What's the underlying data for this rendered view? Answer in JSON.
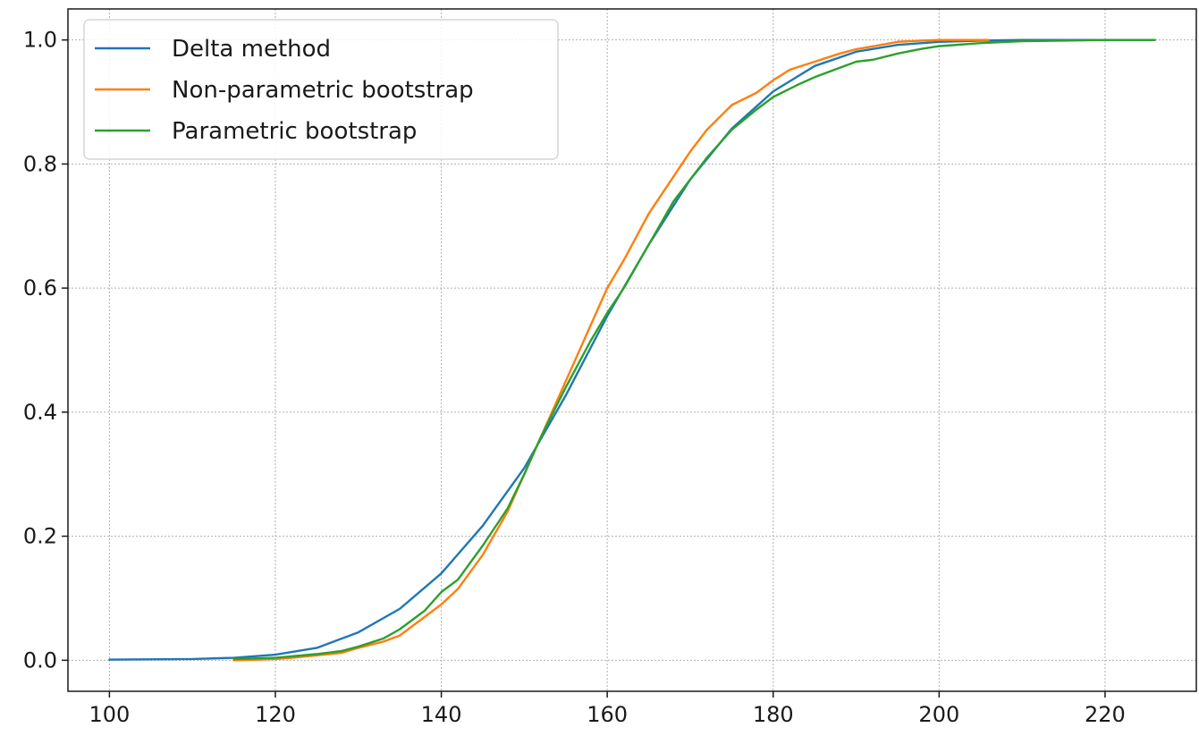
{
  "chart_data": {
    "type": "line",
    "title": "",
    "xlabel": "",
    "ylabel": "",
    "xlim": [
      95,
      231
    ],
    "ylim": [
      -0.05,
      1.05
    ],
    "xticks": [
      100,
      120,
      140,
      160,
      180,
      200,
      220
    ],
    "yticks": [
      0.0,
      0.2,
      0.4,
      0.6,
      0.8,
      1.0
    ],
    "xtick_labels": [
      "100",
      "120",
      "140",
      "160",
      "180",
      "200",
      "220"
    ],
    "ytick_labels": [
      "0.0",
      "0.2",
      "0.4",
      "0.6",
      "0.8",
      "1.0"
    ],
    "grid": true,
    "legend_position": "top-left",
    "series": [
      {
        "name": "Delta method",
        "color": "#1f77b4",
        "x": [
          100,
          110,
          115,
          120,
          125,
          130,
          135,
          140,
          145,
          150,
          155,
          160,
          165,
          170,
          175,
          180,
          185,
          190,
          195,
          200,
          205,
          210,
          215,
          220,
          226
        ],
        "y": [
          0.001,
          0.002,
          0.004,
          0.009,
          0.02,
          0.045,
          0.083,
          0.14,
          0.217,
          0.31,
          0.427,
          0.555,
          0.67,
          0.775,
          0.857,
          0.917,
          0.958,
          0.981,
          0.992,
          0.997,
          0.999,
          1.0,
          1.0,
          1.0,
          1.0
        ]
      },
      {
        "name": "Non-parametric bootstrap",
        "color": "#ff7f0e",
        "x": [
          115,
          118,
          120,
          122,
          125,
          128,
          130,
          133,
          135,
          138,
          140,
          142,
          145,
          148,
          150,
          152,
          155,
          158,
          160,
          162,
          165,
          168,
          170,
          172,
          175,
          178,
          180,
          182,
          185,
          188,
          190,
          193,
          195,
          198,
          200,
          203,
          206
        ],
        "y": [
          0.0,
          0.001,
          0.002,
          0.004,
          0.008,
          0.012,
          0.02,
          0.03,
          0.04,
          0.07,
          0.09,
          0.115,
          0.17,
          0.24,
          0.3,
          0.36,
          0.45,
          0.54,
          0.6,
          0.645,
          0.72,
          0.78,
          0.82,
          0.855,
          0.895,
          0.915,
          0.935,
          0.952,
          0.965,
          0.978,
          0.985,
          0.992,
          0.997,
          0.999,
          1.0,
          1.0,
          1.0
        ]
      },
      {
        "name": "Parametric bootstrap",
        "color": "#2ca02c",
        "x": [
          115,
          120,
          125,
          128,
          130,
          133,
          135,
          138,
          140,
          142,
          145,
          148,
          150,
          152,
          155,
          158,
          160,
          162,
          165,
          168,
          170,
          172,
          175,
          178,
          180,
          183,
          185,
          188,
          190,
          192,
          195,
          198,
          200,
          205,
          210,
          215,
          220,
          226
        ],
        "y": [
          0.002,
          0.004,
          0.01,
          0.015,
          0.022,
          0.035,
          0.05,
          0.08,
          0.11,
          0.13,
          0.185,
          0.245,
          0.3,
          0.36,
          0.44,
          0.515,
          0.56,
          0.6,
          0.67,
          0.74,
          0.775,
          0.81,
          0.855,
          0.888,
          0.908,
          0.928,
          0.94,
          0.955,
          0.965,
          0.968,
          0.978,
          0.986,
          0.99,
          0.995,
          0.998,
          0.999,
          1.0,
          1.0
        ]
      }
    ]
  }
}
